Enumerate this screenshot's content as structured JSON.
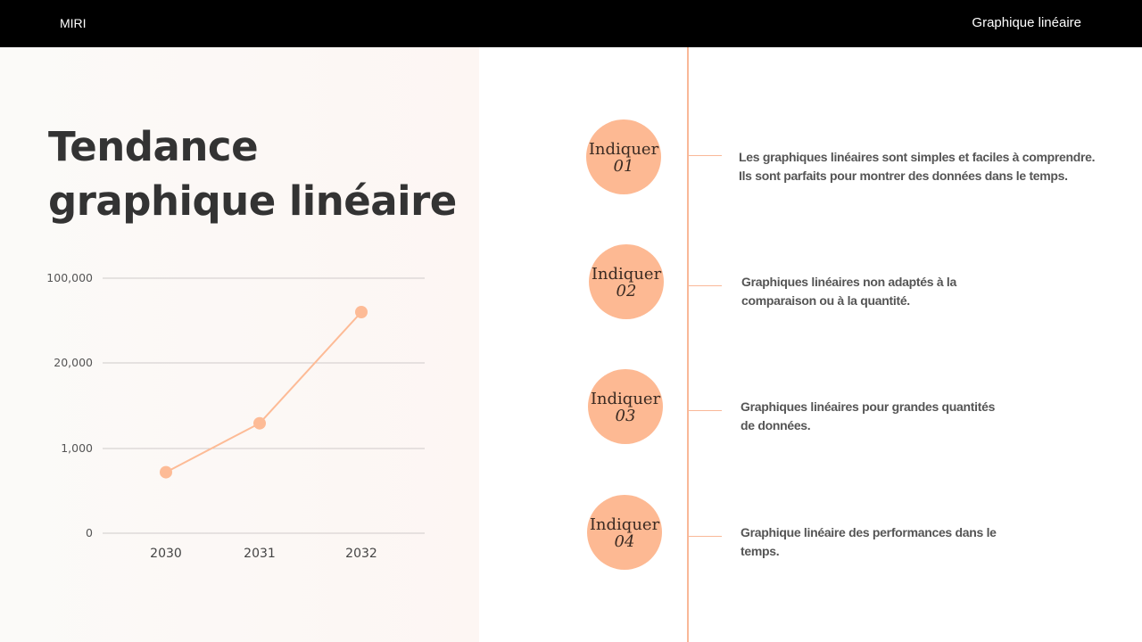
{
  "header": {
    "brand": "MIRI",
    "title": "Graphique linéaire"
  },
  "slide_title_line1": "Tendance",
  "slide_title_line2": "graphique linéaire",
  "chart_data": {
    "type": "line",
    "title": "",
    "xlabel": "",
    "ylabel": "",
    "categories": [
      "2030",
      "2031",
      "2032"
    ],
    "values": [
      720,
      6600,
      68000
    ],
    "y_ticks": [
      0,
      1000,
      20000,
      100000
    ],
    "y_tick_labels": [
      "0",
      "1,000",
      "20,000",
      "100,000"
    ],
    "grid": true,
    "color": "#fdbb96"
  },
  "points": [
    {
      "label": "Indiquer",
      "num": "01",
      "text1": "Les graphiques linéaires sont simples et faciles à comprendre.",
      "text2": "Ils sont parfaits pour montrer des données dans le temps."
    },
    {
      "label": "Indiquer",
      "num": "02",
      "text1": "Graphiques linéaires non adaptés à la",
      "text2": "comparaison ou à la quantité."
    },
    {
      "label": "Indiquer",
      "num": "03",
      "text1": "Graphiques linéaires pour grandes quantités",
      "text2": "de données."
    },
    {
      "label": "Indiquer",
      "num": "04",
      "text1": "Graphique linéaire des performances dans le",
      "text2": "temps."
    }
  ],
  "colors": {
    "accent": "#fdb993",
    "line": "#f9b898",
    "header_bg": "#000000"
  }
}
